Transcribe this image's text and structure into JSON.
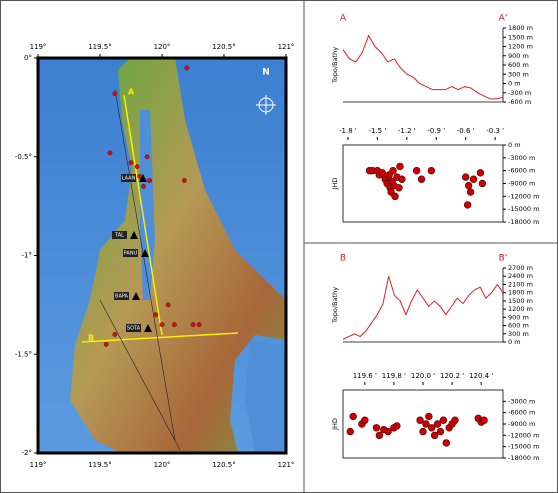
{
  "chart_data": [
    {
      "type": "map",
      "xlim": [
        119,
        121
      ],
      "ylim": [
        -2,
        0
      ],
      "xticks": [
        {
          "value": 119,
          "label": "119°"
        },
        {
          "value": 119.5,
          "label": "119.5°"
        },
        {
          "value": 120,
          "label": "120°"
        },
        {
          "value": 120.5,
          "label": "120.5°"
        },
        {
          "value": 121,
          "label": "121°"
        }
      ],
      "yticks": [
        {
          "value": 0,
          "label": "0°"
        },
        {
          "value": -0.5,
          "label": "-0.5°"
        },
        {
          "value": -1,
          "label": "-1°"
        },
        {
          "value": -1.5,
          "label": "-1.5°"
        },
        {
          "value": -2,
          "label": "-2°"
        }
      ],
      "north_label": "N",
      "section_labels": [
        "A",
        "B"
      ],
      "stations": [
        "LAAN",
        "TAL",
        "PANU",
        "BAPA",
        "SOTA"
      ],
      "color": "#cc1111",
      "x": [
        119.58,
        119.62,
        119.75,
        119.8,
        119.82,
        119.85,
        119.9,
        119.88,
        119.95,
        120.0,
        120.05,
        120.1,
        120.18,
        120.2,
        120.25,
        120.3,
        119.62,
        119.55
      ],
      "y": [
        -0.48,
        -0.18,
        -0.53,
        -0.55,
        -0.6,
        -0.65,
        -0.62,
        -0.5,
        -1.3,
        -1.35,
        -1.25,
        -1.35,
        -0.62,
        -0.05,
        -1.35,
        -1.35,
        -1.4,
        -1.45
      ]
    },
    {
      "type": "line",
      "ylabel": "Topo/Bathy",
      "start_label": "A",
      "end_label": "A'",
      "color": "#e02020",
      "values": [
        1100,
        800,
        700,
        1000,
        1550,
        1200,
        1000,
        700,
        800,
        500,
        300,
        200,
        0,
        -100,
        -200,
        -200,
        -200,
        -100,
        -200,
        -100,
        -150,
        -300,
        -400,
        -500,
        -500,
        -450
      ],
      "ylim": [
        -600,
        1800
      ],
      "yticks": [
        {
          "value": 1800,
          "label": "1800 m"
        },
        {
          "value": 1500,
          "label": "1500 m"
        },
        {
          "value": 1200,
          "label": "1200 m"
        },
        {
          "value": 900,
          "label": "900 m"
        },
        {
          "value": 600,
          "label": "600 m"
        },
        {
          "value": 300,
          "label": "300 m"
        },
        {
          "value": 0,
          "label": "0 m"
        },
        {
          "value": -300,
          "label": "-300 m"
        },
        {
          "value": -600,
          "label": "-600 m"
        }
      ]
    },
    {
      "type": "scatter",
      "ylabel": "JHD",
      "color": "#cc0000",
      "xlim": [
        -1.85,
        -0.22
      ],
      "xticks": [
        {
          "value": -1.8,
          "label": "-1.8 '"
        },
        {
          "value": -1.5,
          "label": "-1.5 '"
        },
        {
          "value": -1.2,
          "label": "-1.2 '"
        },
        {
          "value": -0.9,
          "label": "-0.9 '"
        },
        {
          "value": -0.6,
          "label": "-0.6 '"
        },
        {
          "value": -0.3,
          "label": "-0.3 '"
        }
      ],
      "ylim": [
        -18000,
        0
      ],
      "yticks": [
        {
          "value": 0,
          "label": "0 m"
        },
        {
          "value": -3000,
          "label": "-3000 m"
        },
        {
          "value": -6000,
          "label": "-6000 m"
        },
        {
          "value": -9000,
          "label": "-9000 m"
        },
        {
          "value": -12000,
          "label": "-12000 m"
        },
        {
          "value": -15000,
          "label": "-15000 m"
        },
        {
          "value": -18000,
          "label": "-18000 m"
        }
      ],
      "x": [
        -1.58,
        -1.55,
        -1.5,
        -1.48,
        -1.45,
        -1.42,
        -1.4,
        -1.38,
        -1.37,
        -1.36,
        -1.35,
        -1.34,
        -1.33,
        -1.32,
        -1.3,
        -1.28,
        -1.27,
        -1.25,
        -1.1,
        -1.05,
        -0.95,
        -0.6,
        -0.57,
        -0.55,
        -0.52,
        -0.45,
        -0.43,
        -0.58
      ],
      "y": [
        -6000,
        -6000,
        -6000,
        -7000,
        -6500,
        -8000,
        -9000,
        -7000,
        -10000,
        -11000,
        -8500,
        -6000,
        -9500,
        -12000,
        -7500,
        -10000,
        -5000,
        -8000,
        -6000,
        -8000,
        -6000,
        -7500,
        -9500,
        -11000,
        -8000,
        -6500,
        -9000,
        -14000
      ]
    },
    {
      "type": "line",
      "ylabel": "Topo/Bathy",
      "start_label": "B",
      "end_label": "B'",
      "color": "#e02020",
      "values": [
        100,
        200,
        300,
        200,
        400,
        700,
        1000,
        1400,
        2400,
        1700,
        1500,
        1000,
        1500,
        1900,
        1600,
        1300,
        1500,
        1300,
        1000,
        1300,
        1600,
        1400,
        1700,
        1900,
        2000,
        1600,
        1800,
        2100,
        1800
      ],
      "ylim": [
        0,
        2700
      ],
      "yticks": [
        {
          "value": 2700,
          "label": "2700 m"
        },
        {
          "value": 2400,
          "label": "2400 m"
        },
        {
          "value": 2100,
          "label": "2100 m"
        },
        {
          "value": 1800,
          "label": "1800 m"
        },
        {
          "value": 1500,
          "label": "1500 m"
        },
        {
          "value": 1200,
          "label": "1200 m"
        },
        {
          "value": 900,
          "label": "900 m"
        },
        {
          "value": 600,
          "label": "600 m"
        },
        {
          "value": 300,
          "label": "300 m"
        },
        {
          "value": 0,
          "label": "0 m"
        }
      ]
    },
    {
      "type": "scatter",
      "ylabel": "JHD",
      "color": "#cc0000",
      "xlim": [
        119.45,
        120.55
      ],
      "xticks": [
        {
          "value": 119.6,
          "label": "119.6 '"
        },
        {
          "value": 119.8,
          "label": "119.8 '"
        },
        {
          "value": 120.0,
          "label": "120.0 '"
        },
        {
          "value": 120.2,
          "label": "120.2 '"
        },
        {
          "value": 120.4,
          "label": "120.4 '"
        }
      ],
      "ylim": [
        -18000,
        0
      ],
      "yticks": [
        {
          "value": -3000,
          "label": "-3000 m"
        },
        {
          "value": -6000,
          "label": "-6000 m"
        },
        {
          "value": -9000,
          "label": "-9000 m"
        },
        {
          "value": -12000,
          "label": "-12000 m"
        },
        {
          "value": -15000,
          "label": "-15000 m"
        },
        {
          "value": -18000,
          "label": "-18000 m"
        }
      ],
      "x": [
        119.5,
        119.52,
        119.58,
        119.6,
        119.68,
        119.7,
        119.73,
        119.76,
        119.8,
        119.82,
        119.98,
        120.0,
        120.02,
        120.04,
        120.06,
        120.08,
        120.1,
        120.12,
        120.14,
        120.16,
        120.18,
        120.2,
        120.22,
        120.38,
        120.4,
        120.42
      ],
      "y": [
        -11000,
        -7000,
        -9000,
        -8000,
        -10000,
        -12000,
        -10500,
        -11000,
        -10000,
        -9500,
        -8000,
        -11000,
        -9000,
        -7000,
        -10000,
        -12000,
        -9000,
        -11000,
        -8000,
        -14000,
        -10000,
        -9000,
        -8000,
        -7500,
        -8500,
        -8000
      ]
    }
  ]
}
